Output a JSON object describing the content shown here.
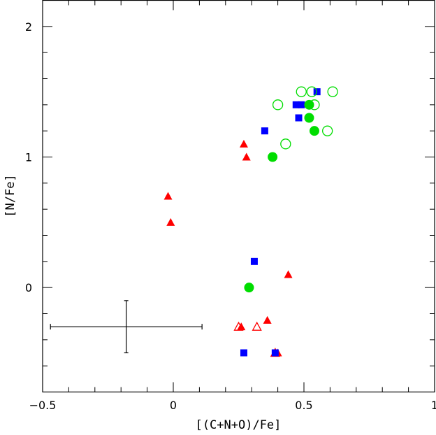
{
  "chart_data": {
    "type": "scatter",
    "title": "",
    "xlabel": "[(C+N+O)/Fe]",
    "ylabel": "[N/Fe]",
    "xlim": [
      -0.5,
      1.0
    ],
    "ylim": [
      -0.8,
      2.2
    ],
    "x_ticks": [
      -0.5,
      0,
      0.5,
      1
    ],
    "x_tick_labels": [
      "−0.5",
      "0",
      "0.5",
      "1"
    ],
    "y_ticks": [
      0,
      1,
      2
    ],
    "y_tick_labels": [
      "0",
      "1",
      "2"
    ],
    "grid": false,
    "legend": "none",
    "series": [
      {
        "marker": "triangle-filled",
        "color": "#ff0000",
        "points": [
          {
            "x": -0.02,
            "y": 0.7
          },
          {
            "x": -0.01,
            "y": 0.5
          },
          {
            "x": 0.27,
            "y": 1.1
          },
          {
            "x": 0.28,
            "y": 1.0
          },
          {
            "x": 0.26,
            "y": -0.3
          },
          {
            "x": 0.36,
            "y": -0.25
          },
          {
            "x": 0.44,
            "y": 0.1
          },
          {
            "x": 0.4,
            "y": -0.5
          }
        ]
      },
      {
        "marker": "triangle-open",
        "color": "#ff0000",
        "points": [
          {
            "x": 0.25,
            "y": -0.3
          },
          {
            "x": 0.32,
            "y": -0.3
          },
          {
            "x": 0.39,
            "y": -0.5
          }
        ]
      },
      {
        "marker": "square-filled",
        "color": "#0000ff",
        "points": [
          {
            "x": 0.55,
            "y": 1.5
          },
          {
            "x": 0.47,
            "y": 1.4
          },
          {
            "x": 0.49,
            "y": 1.4
          },
          {
            "x": 0.48,
            "y": 1.3
          },
          {
            "x": 0.35,
            "y": 1.2
          },
          {
            "x": 0.31,
            "y": 0.2
          },
          {
            "x": 0.27,
            "y": -0.5
          },
          {
            "x": 0.39,
            "y": -0.5
          }
        ]
      },
      {
        "marker": "circle-filled",
        "color": "#00dd00",
        "points": [
          {
            "x": 0.52,
            "y": 1.4
          },
          {
            "x": 0.52,
            "y": 1.3
          },
          {
            "x": 0.54,
            "y": 1.2
          },
          {
            "x": 0.38,
            "y": 1.0
          },
          {
            "x": 0.29,
            "y": 0.0
          }
        ]
      },
      {
        "marker": "circle-open",
        "color": "#00dd00",
        "points": [
          {
            "x": 0.49,
            "y": 1.5
          },
          {
            "x": 0.53,
            "y": 1.5
          },
          {
            "x": 0.61,
            "y": 1.5
          },
          {
            "x": 0.4,
            "y": 1.4
          },
          {
            "x": 0.54,
            "y": 1.4
          },
          {
            "x": 0.59,
            "y": 1.2
          },
          {
            "x": 0.43,
            "y": 1.1
          }
        ]
      }
    ],
    "error_bar": {
      "x": -0.18,
      "y": -0.3,
      "x_minus": 0.29,
      "x_plus": 0.29,
      "y_minus": 0.2,
      "y_plus": 0.2,
      "color": "#000000"
    }
  }
}
